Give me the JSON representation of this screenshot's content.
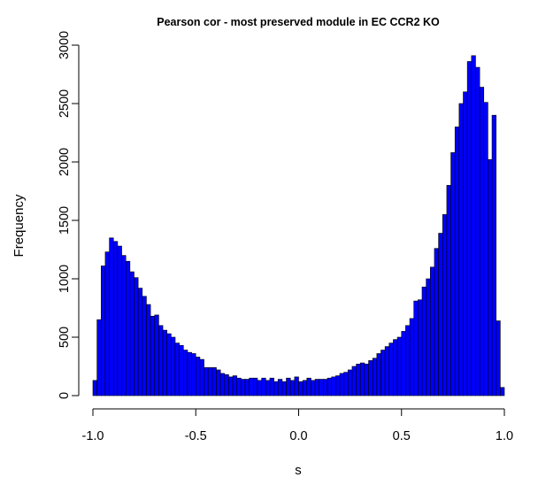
{
  "chart_data": {
    "type": "bar",
    "title": "Pearson cor - most preserved module in EC CCR2 KO",
    "xlabel": "s",
    "ylabel": "Frequency",
    "xlim": [
      -1.0,
      1.0
    ],
    "ylim": [
      0,
      3000
    ],
    "bin_width": 0.02,
    "bin_start": -1.0,
    "x_ticks": [
      -1.0,
      -0.5,
      0.0,
      0.5,
      1.0
    ],
    "x_tick_labels": [
      "-1.0",
      "-0.5",
      "0.0",
      "0.5",
      "1.0"
    ],
    "y_ticks": [
      0,
      500,
      1000,
      1500,
      2000,
      2500,
      3000
    ],
    "y_tick_labels": [
      "0",
      "500",
      "1000",
      "1500",
      "2000",
      "2500",
      "3000"
    ],
    "bar_color": "#0000ff",
    "grid": false,
    "values": [
      130,
      650,
      1110,
      1230,
      1350,
      1320,
      1280,
      1200,
      1150,
      1060,
      1010,
      920,
      850,
      780,
      680,
      690,
      600,
      560,
      530,
      500,
      450,
      430,
      390,
      370,
      360,
      330,
      310,
      240,
      240,
      240,
      220,
      190,
      180,
      160,
      170,
      150,
      140,
      140,
      150,
      150,
      130,
      150,
      130,
      150,
      120,
      140,
      120,
      150,
      130,
      160,
      120,
      130,
      150,
      130,
      140,
      140,
      140,
      150,
      160,
      170,
      190,
      200,
      220,
      250,
      270,
      280,
      270,
      300,
      320,
      360,
      390,
      420,
      450,
      480,
      500,
      550,
      600,
      660,
      810,
      820,
      930,
      1000,
      1100,
      1260,
      1390,
      1550,
      1800,
      2080,
      2300,
      2500,
      2600,
      2860,
      2910,
      2810,
      2640,
      2510,
      2020,
      2400,
      640,
      70
    ]
  }
}
